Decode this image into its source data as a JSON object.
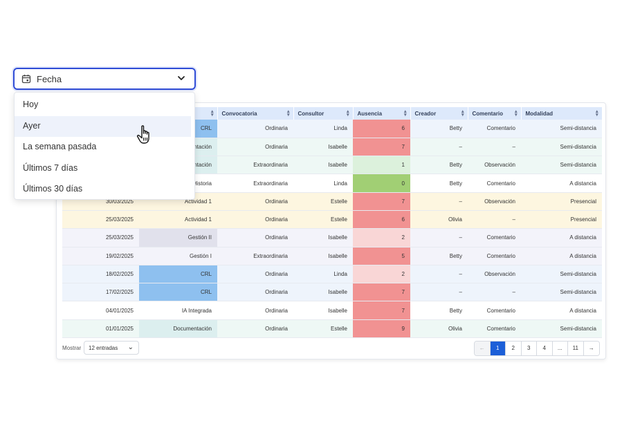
{
  "date_filter": {
    "label": "Fecha"
  },
  "menu_items": [
    "Hoy",
    "Ayer",
    "La semana pasada",
    "Últimos 7 días",
    "Últimos 30 días"
  ],
  "table": {
    "headers": [
      "",
      "",
      "Convocatoria",
      "Consultor",
      "Ausencia",
      "Creador",
      "Comentario",
      "Modalidad"
    ],
    "rows": [
      [
        "",
        "CRL",
        "Ordinaria",
        "Linda",
        "6",
        "Betty",
        "Comentario",
        "Semi-distancia"
      ],
      [
        "",
        "ntación",
        "Ordinaria",
        "Isabelle",
        "7",
        "–",
        "–",
        "Semi-distancia"
      ],
      [
        "",
        "ntación",
        "Extraordinaria",
        "Isabelle",
        "1",
        "Betty",
        "Observación",
        "Semi-distancia"
      ],
      [
        "",
        "Historia",
        "Extraordinaria",
        "Linda",
        "0",
        "Betty",
        "Comentario",
        "A distancia"
      ],
      [
        "30/03/2025",
        "Actividad 1",
        "Ordinaria",
        "Estelle",
        "7",
        "–",
        "Observación",
        "Presencial"
      ],
      [
        "25/03/2025",
        "Actividad 1",
        "Ordinaria",
        "Estelle",
        "6",
        "Olivia",
        "–",
        "Presencial"
      ],
      [
        "25/03/2025",
        "Gestión II",
        "Ordinaria",
        "Isabelle",
        "2",
        "–",
        "Comentario",
        "A distancia"
      ],
      [
        "19/02/2025",
        "Gestión I",
        "Extraordinaria",
        "Isabelle",
        "5",
        "Betty",
        "Comentario",
        "A distancia"
      ],
      [
        "18/02/2025",
        "CRL",
        "Ordinaria",
        "Linda",
        "2",
        "–",
        "Observación",
        "Semi-distancia"
      ],
      [
        "17/02/2025",
        "CRL",
        "Ordinaria",
        "Isabelle",
        "7",
        "–",
        "–",
        "Semi-distancia"
      ],
      [
        "04/01/2025",
        "IA Integrada",
        "Ordinaria",
        "Isabelle",
        "7",
        "Betty",
        "Comentario",
        "A distancia"
      ],
      [
        "01/01/2025",
        "Documentación",
        "Ordinaria",
        "Estelle",
        "9",
        "Olivia",
        "Comentario",
        "Semi-distancia"
      ]
    ]
  },
  "footer": {
    "show_label": "Mostrar",
    "entries_value": "12 entradas",
    "pages": [
      "1",
      "2",
      "3",
      "4",
      "...",
      "11"
    ],
    "active_page": "1"
  }
}
